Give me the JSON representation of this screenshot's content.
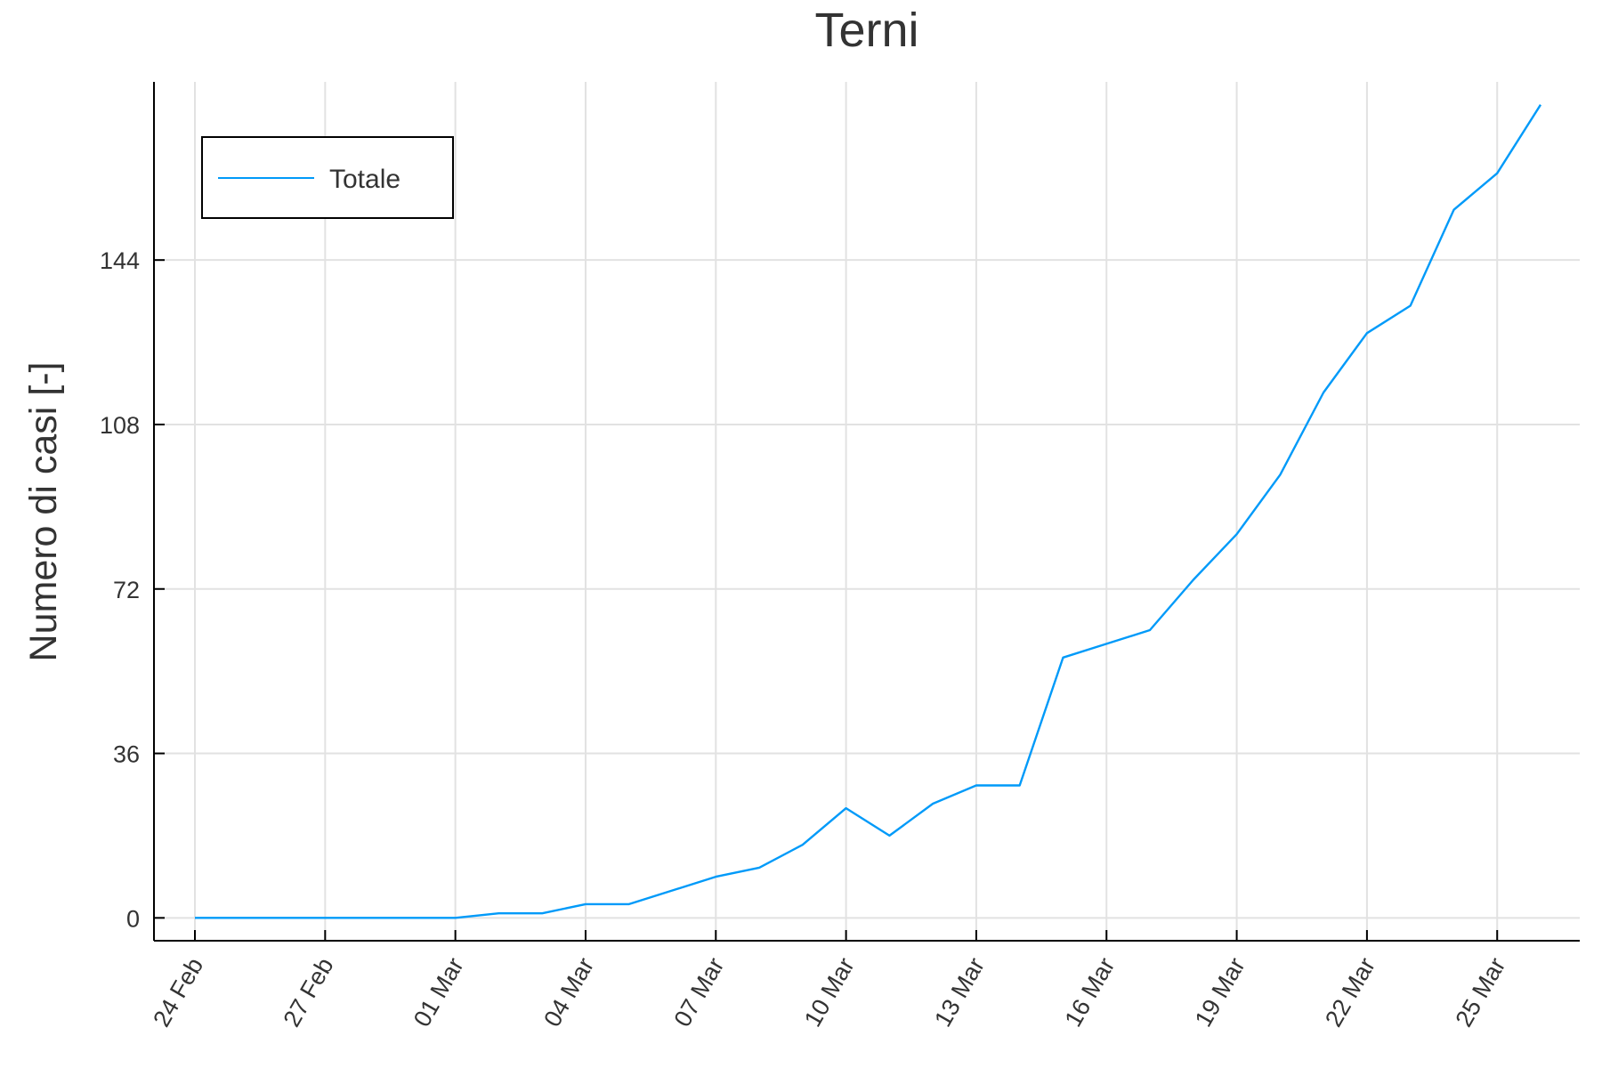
{
  "chart_data": {
    "type": "line",
    "title": "Terni",
    "xlabel": "",
    "ylabel": "Numero di casi [-]",
    "x_tick_labels": [
      "24 Feb",
      "27 Feb",
      "01 Mar",
      "04 Mar",
      "07 Mar",
      "10 Mar",
      "13 Mar",
      "16 Mar",
      "19 Mar",
      "22 Mar",
      "25 Mar"
    ],
    "y_ticks": [
      0,
      36,
      72,
      108,
      144
    ],
    "ylim": [
      -5,
      183
    ],
    "xlim": [
      "2020-02-24",
      "2020-03-26"
    ],
    "grid": true,
    "legend_position": "top-left",
    "x": [
      "2020-02-24",
      "2020-02-25",
      "2020-02-26",
      "2020-02-27",
      "2020-02-28",
      "2020-02-29",
      "2020-03-01",
      "2020-03-02",
      "2020-03-03",
      "2020-03-04",
      "2020-03-05",
      "2020-03-06",
      "2020-03-07",
      "2020-03-08",
      "2020-03-09",
      "2020-03-10",
      "2020-03-11",
      "2020-03-12",
      "2020-03-13",
      "2020-03-14",
      "2020-03-15",
      "2020-03-16",
      "2020-03-17",
      "2020-03-18",
      "2020-03-19",
      "2020-03-20",
      "2020-03-21",
      "2020-03-22",
      "2020-03-23",
      "2020-03-24",
      "2020-03-25",
      "2020-03-26"
    ],
    "series": [
      {
        "name": "Totale",
        "color": "#009af9",
        "values": [
          0,
          0,
          0,
          0,
          0,
          0,
          0,
          1,
          1,
          3,
          3,
          6,
          9,
          11,
          16,
          24,
          18,
          25,
          29,
          29,
          57,
          60,
          63,
          74,
          84,
          97,
          115,
          128,
          134,
          155,
          163,
          178
        ]
      }
    ]
  }
}
